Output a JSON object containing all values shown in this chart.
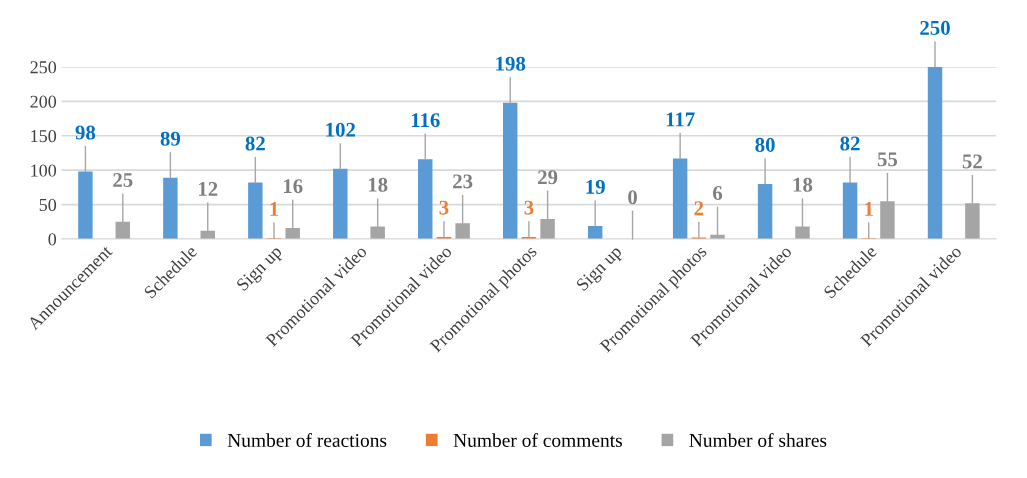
{
  "chart_data": {
    "type": "bar",
    "categories": [
      "Announcement",
      "Schedule",
      "Sign up",
      "Promotional video",
      "Promotional video",
      "Promotional photos",
      "Sign up",
      "Promotional photos",
      "Promotional video",
      "Schedule",
      "Promotional video"
    ],
    "series": [
      {
        "name": "Number of reactions",
        "color": "#5b9bd5",
        "values": [
          98,
          89,
          82,
          102,
          116,
          198,
          19,
          117,
          80,
          82,
          250
        ],
        "value_labels": [
          "98",
          "89",
          "82",
          "102",
          "116",
          "198",
          "19",
          "117",
          "80",
          "82",
          "250"
        ]
      },
      {
        "name": "Number of comments",
        "color": "#ed7d31",
        "values": [
          0,
          0,
          1,
          0,
          3,
          3,
          0,
          2,
          0,
          1,
          0
        ],
        "value_labels": [
          null,
          null,
          "1",
          null,
          "3",
          "3",
          null,
          "2",
          null,
          "1",
          null
        ]
      },
      {
        "name": "Number of shares",
        "color": "#a5a5a5",
        "values": [
          25,
          12,
          16,
          18,
          23,
          29,
          0,
          6,
          18,
          55,
          52
        ],
        "value_labels": [
          "25",
          "12",
          "16",
          "18",
          "23",
          "29",
          "0",
          "6",
          "18",
          "55",
          "52"
        ]
      }
    ],
    "ylim": [
      0,
      250
    ],
    "yticks": [
      0,
      50,
      100,
      150,
      200,
      250
    ],
    "grid": "y",
    "legend": "bottom"
  }
}
